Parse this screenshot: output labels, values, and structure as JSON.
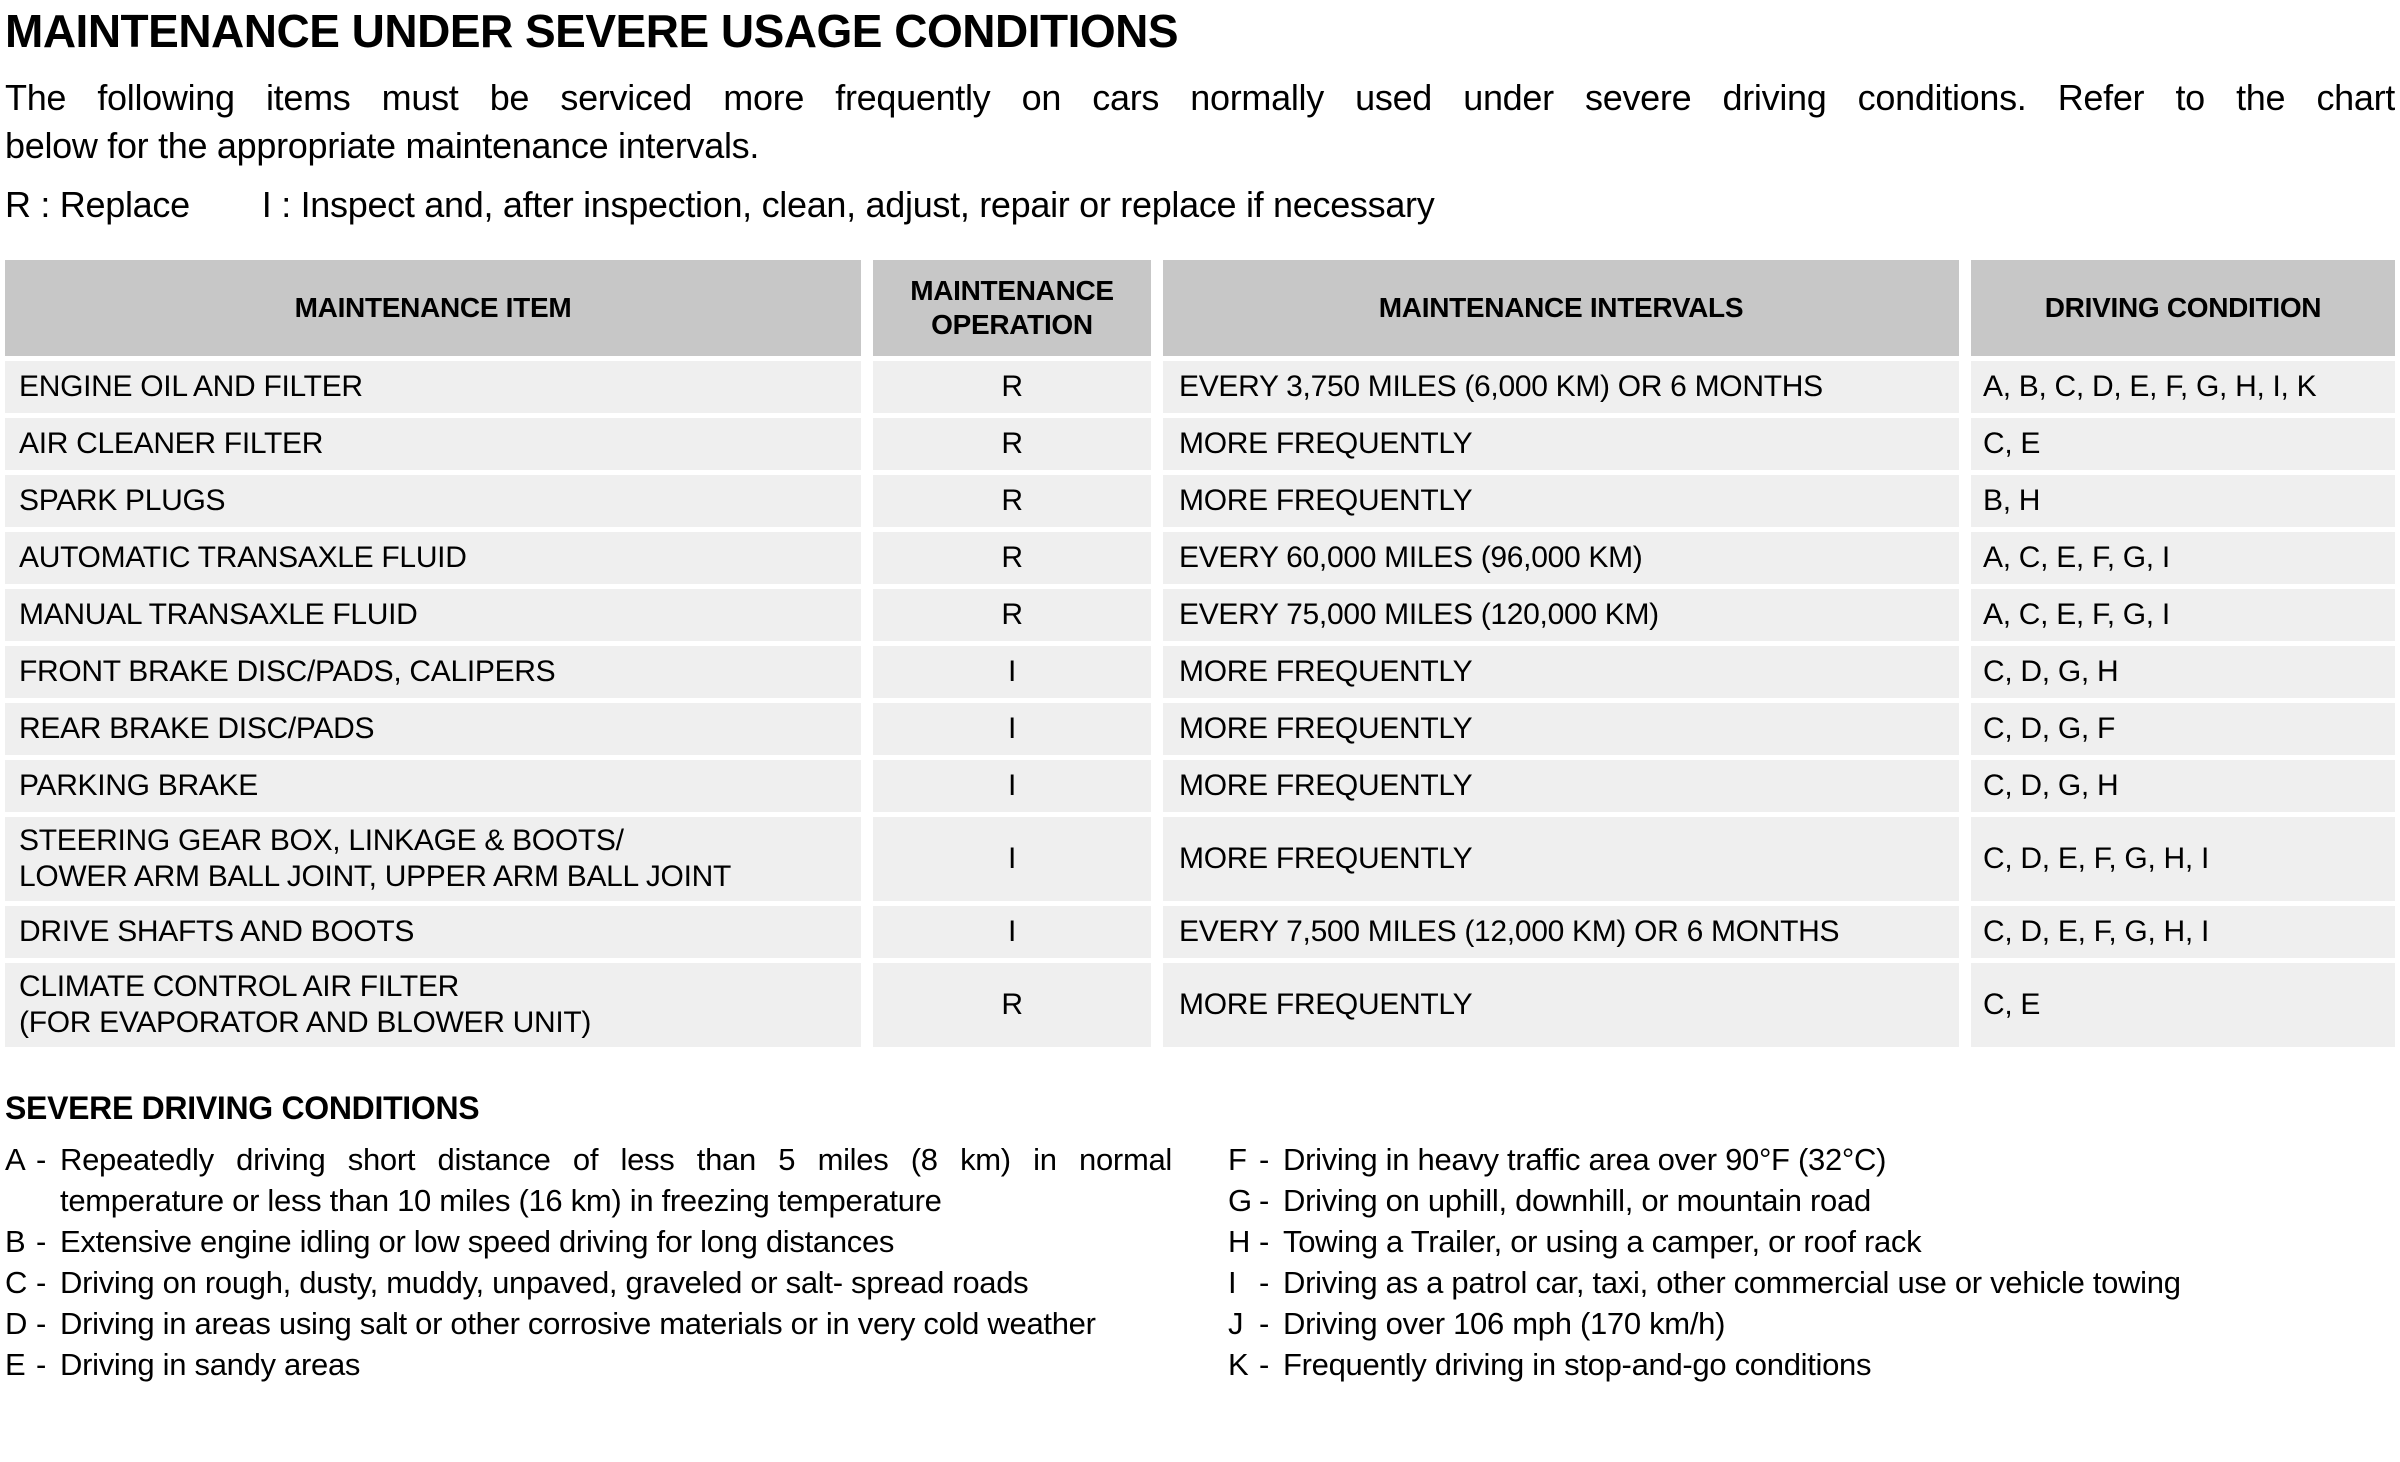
{
  "page": {
    "title": "MAINTENANCE UNDER SEVERE USAGE CONDITIONS",
    "intro_line1": "The following items must be serviced more frequently on cars normally used under severe driving conditions. Refer to the chart",
    "intro_line2": "below for the appropriate maintenance intervals.",
    "legend": {
      "replace": "R : Replace",
      "inspect": "I : Inspect and, after inspection, clean, adjust, repair or replace if necessary"
    }
  },
  "table": {
    "headers": [
      "MAINTENANCE ITEM",
      "MAINTENANCE OPERATION",
      "MAINTENANCE INTERVALS",
      "DRIVING CONDITION"
    ],
    "rows": [
      {
        "item": "ENGINE OIL AND FILTER",
        "operation": "R",
        "interval": "EVERY 3,750 MILES (6,000 KM) OR 6 MONTHS",
        "conditions": "A, B, C, D, E, F, G, H, I, K"
      },
      {
        "item": "AIR CLEANER FILTER",
        "operation": "R",
        "interval": "MORE FREQUENTLY",
        "conditions": "C, E"
      },
      {
        "item": "SPARK PLUGS",
        "operation": "R",
        "interval": "MORE FREQUENTLY",
        "conditions": "B, H"
      },
      {
        "item": "AUTOMATIC TRANSAXLE FLUID",
        "operation": "R",
        "interval": "EVERY 60,000 MILES (96,000 KM)",
        "conditions": "A, C, E, F, G, I"
      },
      {
        "item": "MANUAL TRANSAXLE FLUID",
        "operation": "R",
        "interval": "EVERY 75,000 MILES (120,000 KM)",
        "conditions": "A, C, E, F, G, I"
      },
      {
        "item": "FRONT BRAKE DISC/PADS, CALIPERS",
        "operation": "I",
        "interval": "MORE FREQUENTLY",
        "conditions": "C, D, G, H"
      },
      {
        "item": "REAR BRAKE DISC/PADS",
        "operation": "I",
        "interval": "MORE FREQUENTLY",
        "conditions": "C, D, G, F"
      },
      {
        "item": "PARKING BRAKE",
        "operation": "I",
        "interval": "MORE FREQUENTLY",
        "conditions": "C, D, G, H"
      },
      {
        "item": "STEERING GEAR BOX, LINKAGE & BOOTS/\nLOWER ARM BALL JOINT, UPPER ARM BALL JOINT",
        "operation": "I",
        "interval": "MORE FREQUENTLY",
        "conditions": "C, D, E, F, G, H, I"
      },
      {
        "item": "DRIVE SHAFTS AND BOOTS",
        "operation": "I",
        "interval": "EVERY 7,500 MILES (12,000 KM) OR 6 MONTHS",
        "conditions": "C, D, E, F, G, H, I"
      },
      {
        "item": "CLIMATE CONTROL AIR FILTER\n(FOR EVAPORATOR AND BLOWER UNIT)",
        "operation": "R",
        "interval": "MORE FREQUENTLY",
        "conditions": "C, E"
      }
    ]
  },
  "severe": {
    "heading": "SEVERE DRIVING CONDITIONS",
    "dash": "-",
    "left": [
      {
        "letter": "A",
        "text": "Repeatedly driving short distance of less than 5 miles (8 km) in normal temperature or less than 10 miles (16 km) in freezing temperature"
      },
      {
        "letter": "B",
        "text": "Extensive engine idling or low speed driving for long distances"
      },
      {
        "letter": "C",
        "text": "Driving on rough, dusty, muddy, unpaved, graveled or salt- spread roads"
      },
      {
        "letter": "D",
        "text": "Driving in areas using salt or other corrosive materials or in very cold weather"
      },
      {
        "letter": "E",
        "text": "Driving in sandy areas"
      }
    ],
    "right": [
      {
        "letter": "F",
        "text": "Driving in heavy traffic area over 90°F (32°C)"
      },
      {
        "letter": "G",
        "text": "Driving on uphill, downhill, or mountain road"
      },
      {
        "letter": "H",
        "text": "Towing a Trailer, or using a camper, or roof rack"
      },
      {
        "letter": "I",
        "text": "Driving as a patrol car, taxi, other commercial use or vehicle towing"
      },
      {
        "letter": "J",
        "text": "Driving over 106 mph (170 km/h)"
      },
      {
        "letter": "K",
        "text": "Frequently driving in stop-and-go conditions"
      }
    ]
  }
}
